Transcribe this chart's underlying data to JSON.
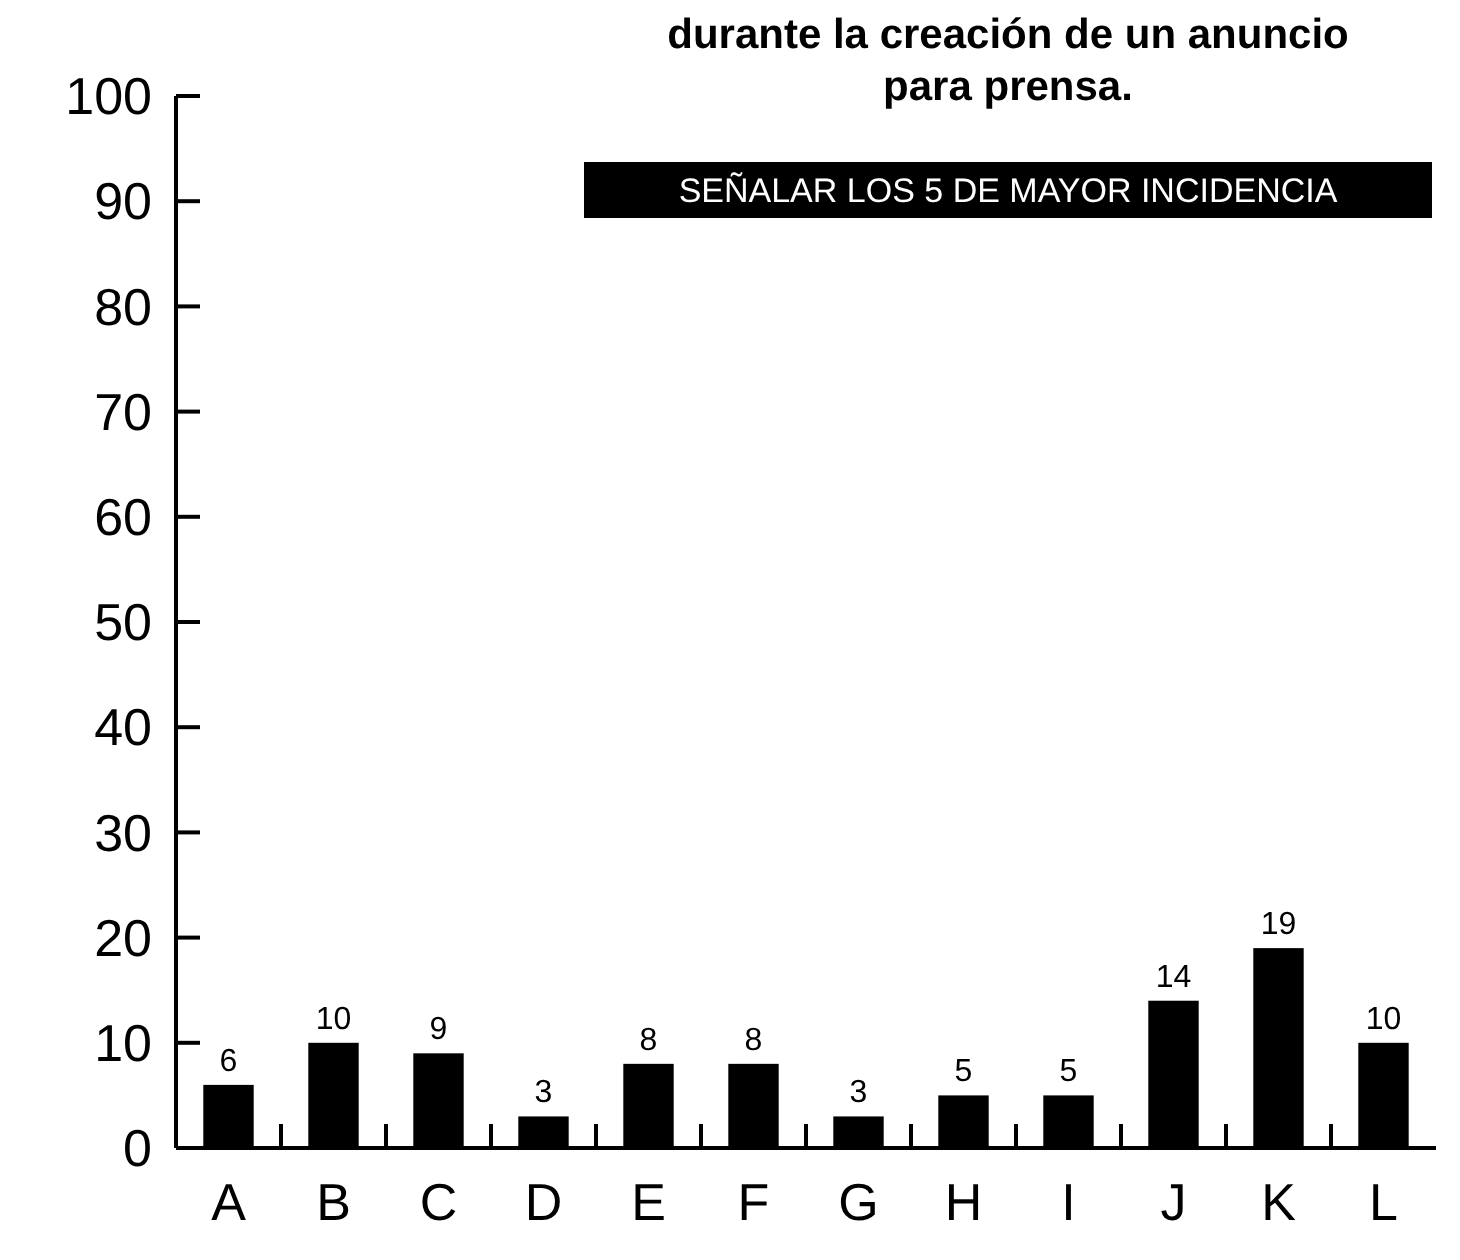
{
  "chart_data": {
    "type": "bar",
    "title": "durante la creación de un anuncio para prensa.",
    "annotations": [
      "SEÑALAR LOS 5 DE MAYOR INCIDENCIA"
    ],
    "categories": [
      "A",
      "B",
      "C",
      "D",
      "E",
      "F",
      "G",
      "H",
      "I",
      "J",
      "K",
      "L"
    ],
    "values": [
      6,
      10,
      9,
      3,
      8,
      8,
      3,
      5,
      5,
      14,
      19,
      10
    ],
    "color": "#000000",
    "data_labels": true,
    "ylim": [
      0,
      100
    ],
    "yticks": [
      0,
      10,
      20,
      30,
      40,
      50,
      60,
      70,
      80,
      90,
      100
    ],
    "grid": false
  }
}
